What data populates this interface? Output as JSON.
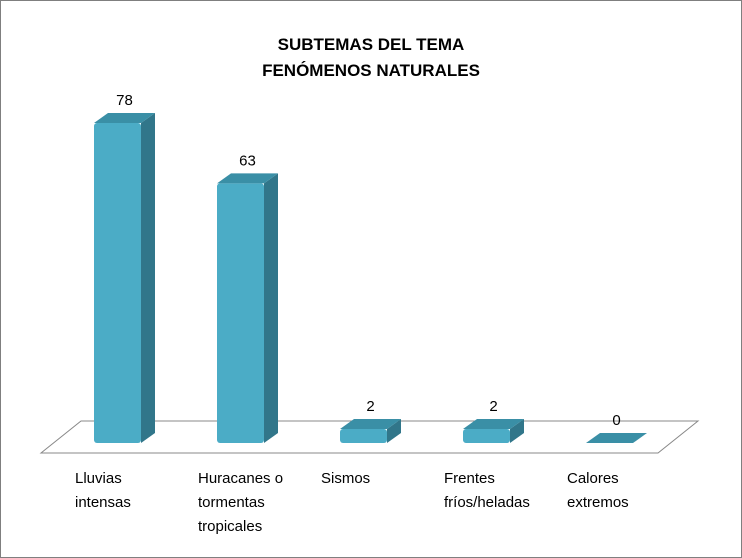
{
  "chart_data": {
    "type": "bar",
    "title": [
      "SUBTEMAS DEL TEMA",
      "FENÓMENOS NATURALES"
    ],
    "categories": [
      [
        "Lluvias",
        "intensas"
      ],
      [
        "Huracanes o",
        "tormentas",
        "tropicales"
      ],
      [
        "Sismos"
      ],
      [
        "Frentes",
        "fríos/heladas"
      ],
      [
        "Calores",
        "extremos"
      ]
    ],
    "values": [
      78,
      63,
      2,
      2,
      0
    ],
    "xlabel": "",
    "ylabel": "",
    "ylim": [
      0,
      78
    ],
    "grid": false,
    "legend": "none",
    "colors": {
      "front": "#4bacc6",
      "side": "#31768a",
      "top": "#3a8fa6",
      "floor_stroke": "#888888"
    }
  }
}
